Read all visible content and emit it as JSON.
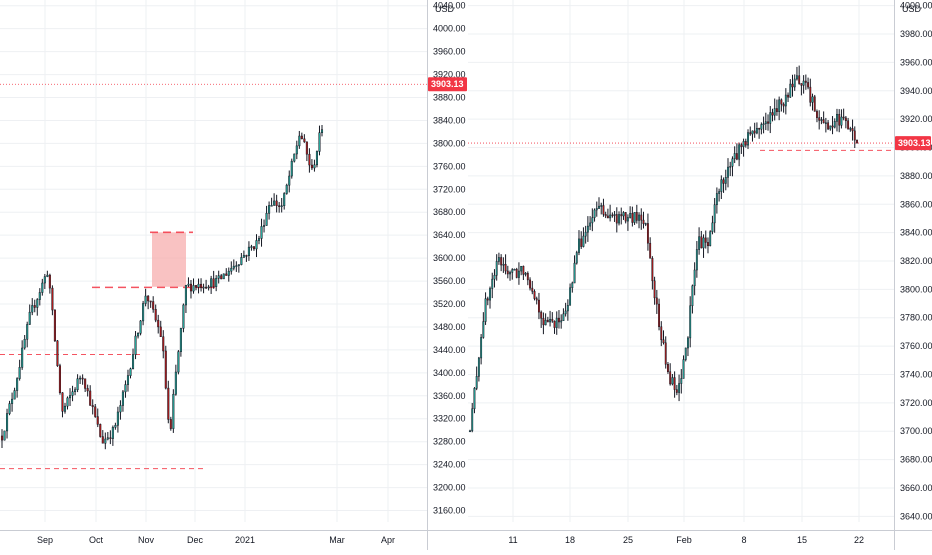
{
  "colors": {
    "up": "#26a69a",
    "down": "#b71c1c",
    "wick": "#131722",
    "price_line": "#f23645",
    "support": "#f23645",
    "highlight": "#f7a8a8"
  },
  "chart_data": [
    {
      "type": "candlestick",
      "title": "",
      "currency": "USD",
      "last_price": "3903.13",
      "ylim": [
        3140,
        4050
      ],
      "y_ticks": [
        3160,
        3200,
        3240,
        3280,
        3320,
        3360,
        3400,
        3440,
        3480,
        3520,
        3560,
        3600,
        3640,
        3680,
        3720,
        3760,
        3800,
        3840,
        3880,
        3920,
        3960,
        4000,
        4040
      ],
      "x_labels": [
        "Sep",
        "Oct",
        "Nov",
        "Dec",
        "2021",
        "Mar",
        "Apr"
      ],
      "support_levels": [
        3233,
        3432,
        3549,
        3645
      ],
      "highlight_zone": {
        "y_low": 3550,
        "y_high": 3645
      },
      "waypoints": [
        {
          "x": "Aug 20",
          "close": 3290
        },
        {
          "x": "Aug 24",
          "close": 3385
        },
        {
          "x": "Aug 28",
          "close": 3500
        },
        {
          "x": "Sep 2",
          "close": 3580
        },
        {
          "x": "Sep 8",
          "close": 3330
        },
        {
          "x": "Sep 14",
          "close": 3400
        },
        {
          "x": "Sep 21",
          "close": 3280
        },
        {
          "x": "Sep 25",
          "close": 3300
        },
        {
          "x": "Oct 1",
          "close": 3380
        },
        {
          "x": "Oct 12",
          "close": 3540
        },
        {
          "x": "Oct 18",
          "close": 3460
        },
        {
          "x": "Oct 28",
          "close": 3280
        },
        {
          "x": "Nov 3",
          "close": 3370
        },
        {
          "x": "Nov 9",
          "close": 3550
        },
        {
          "x": "Nov 20",
          "close": 3560
        },
        {
          "x": "Nov 24",
          "close": 3630
        },
        {
          "x": "Dec 8",
          "close": 3700
        },
        {
          "x": "Dec 21",
          "close": 3690
        },
        {
          "x": "Jan 8",
          "close": 3820
        },
        {
          "x": "Jan 27",
          "close": 3750
        },
        {
          "x": "Feb 2",
          "close": 3830
        },
        {
          "x": "Feb 12",
          "close": 3935
        },
        {
          "x": "Feb 19",
          "close": 3905
        }
      ]
    },
    {
      "type": "candlestick",
      "title": "",
      "currency": "USD",
      "last_price": "3903.13",
      "ylim": [
        3636,
        4004
      ],
      "y_ticks": [
        3640,
        3660,
        3680,
        3700,
        3720,
        3740,
        3760,
        3780,
        3800,
        3820,
        3840,
        3860,
        3880,
        3900,
        3920,
        3940,
        3960,
        3980,
        4000
      ],
      "x_labels": [
        "11",
        "18",
        "25",
        "Feb",
        "8",
        "15",
        "22"
      ],
      "support_levels": [
        3898
      ],
      "waypoints": [
        {
          "x": "Jan 7 09:30",
          "close": 3700
        },
        {
          "x": "Jan 8 10:00",
          "close": 3785
        },
        {
          "x": "Jan 8 15:00",
          "close": 3820
        },
        {
          "x": "Jan 11 12:00",
          "close": 3810
        },
        {
          "x": "Jan 13 15:00",
          "close": 3815
        },
        {
          "x": "Jan 15 12:00",
          "close": 3775
        },
        {
          "x": "Jan 19 10:00",
          "close": 3780
        },
        {
          "x": "Jan 20 12:00",
          "close": 3830
        },
        {
          "x": "Jan 21 14:00",
          "close": 3860
        },
        {
          "x": "Jan 22 12:00",
          "close": 3850
        },
        {
          "x": "Jan 25 12:00",
          "close": 3850
        },
        {
          "x": "Jan 26 14:00",
          "close": 3850
        },
        {
          "x": "Jan 27 12:00",
          "close": 3780
        },
        {
          "x": "Jan 28 12:00",
          "close": 3740
        },
        {
          "x": "Jan 29 12:00",
          "close": 3725
        },
        {
          "x": "Feb 1 12:00",
          "close": 3770
        },
        {
          "x": "Feb 2 12:00",
          "close": 3835
        },
        {
          "x": "Feb 3 12:00",
          "close": 3830
        },
        {
          "x": "Feb 4 12:00",
          "close": 3870
        },
        {
          "x": "Feb 5 12:00",
          "close": 3890
        },
        {
          "x": "Feb 8 12:00",
          "close": 3905
        },
        {
          "x": "Feb 10 12:00",
          "close": 3915
        },
        {
          "x": "Feb 12 12:00",
          "close": 3925
        },
        {
          "x": "Feb 16 10:00",
          "close": 3950
        },
        {
          "x": "Feb 17 12:00",
          "close": 3928
        },
        {
          "x": "Feb 18 12:00",
          "close": 3915
        },
        {
          "x": "Feb 19 12:00",
          "close": 3920
        },
        {
          "x": "Feb 22 09:30",
          "close": 3905
        }
      ]
    }
  ]
}
